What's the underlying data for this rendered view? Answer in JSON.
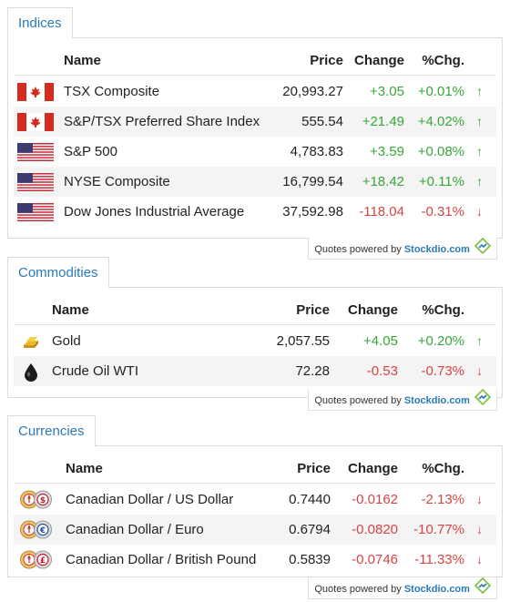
{
  "credit": {
    "prefix": "Quotes powered by",
    "brand": "Stockdio.com"
  },
  "indices": {
    "tab": "Indices",
    "headers": {
      "name": "Name",
      "price": "Price",
      "change": "Change",
      "pct": "%Chg."
    },
    "rows": [
      {
        "flag": "canada-flag",
        "name": "TSX Composite",
        "price": "20,993.27",
        "change": "+3.05",
        "pct": "+0.01%",
        "dir": "up"
      },
      {
        "flag": "canada-flag",
        "name": "S&P/TSX Preferred Share Index",
        "price": "555.54",
        "change": "+21.49",
        "pct": "+4.02%",
        "dir": "up"
      },
      {
        "flag": "us-flag",
        "name": "S&P 500",
        "price": "4,783.83",
        "change": "+3.59",
        "pct": "+0.08%",
        "dir": "up"
      },
      {
        "flag": "us-flag",
        "name": "NYSE Composite",
        "price": "16,799.54",
        "change": "+18.42",
        "pct": "+0.11%",
        "dir": "up"
      },
      {
        "flag": "us-flag",
        "name": "Dow Jones Industrial Average",
        "price": "37,592.98",
        "change": "-118.04",
        "pct": "-0.31%",
        "dir": "down"
      }
    ]
  },
  "commodities": {
    "tab": "Commodities",
    "headers": {
      "name": "Name",
      "price": "Price",
      "change": "Change",
      "pct": "%Chg."
    },
    "rows": [
      {
        "icon": "gold-bar-icon",
        "name": "Gold",
        "price": "2,057.55",
        "change": "+4.05",
        "pct": "+0.20%",
        "dir": "up"
      },
      {
        "icon": "oil-drop-icon",
        "name": "Crude Oil WTI",
        "price": "72.28",
        "change": "-0.53",
        "pct": "-0.73%",
        "dir": "down"
      }
    ]
  },
  "currencies": {
    "tab": "Currencies",
    "headers": {
      "name": "Name",
      "price": "Price",
      "change": "Change",
      "pct": "%Chg."
    },
    "rows": [
      {
        "icon": "cad-usd-coins-icon",
        "name": "Canadian Dollar / US Dollar",
        "price": "0.7440",
        "change": "-0.0162",
        "pct": "-2.13%",
        "dir": "down"
      },
      {
        "icon": "cad-eur-coins-icon",
        "name": "Canadian Dollar / Euro",
        "price": "0.6794",
        "change": "-0.0820",
        "pct": "-10.77%",
        "dir": "down"
      },
      {
        "icon": "cad-gbp-coins-icon",
        "name": "Canadian Dollar / British Pound",
        "price": "0.5839",
        "change": "-0.0746",
        "pct": "-11.33%",
        "dir": "down"
      }
    ]
  },
  "colors": {
    "up": "#3aa53a",
    "down": "#d64545",
    "accent": "#2a7ab8"
  }
}
